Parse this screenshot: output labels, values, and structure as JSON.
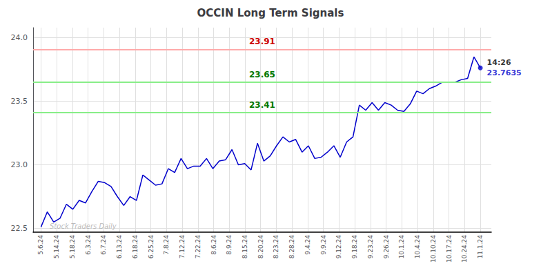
{
  "chart_data": {
    "type": "line",
    "title": "OCCIN Long Term Signals",
    "x": [
      0,
      0.4058,
      0.8116,
      1.2174,
      1.6232,
      2.029,
      2.4348,
      2.8406,
      3.2464,
      3.6522,
      4.058,
      4.4638,
      4.8696,
      5.2754,
      5.6812,
      6.087,
      6.4928,
      6.8986,
      7.3043,
      7.7101,
      8.1159,
      8.5217,
      8.9275,
      9.3333,
      9.7391,
      10.1449,
      10.5507,
      10.9565,
      11.3623,
      11.7681,
      12.1739,
      12.5797,
      12.9855,
      13.3913,
      13.7971,
      14.2029,
      14.6087,
      15.0145,
      15.4203,
      15.8261,
      16.2319,
      16.6377,
      17.0435,
      17.4493,
      17.8551,
      18.2609,
      18.6667,
      19.0725,
      19.4783,
      19.8841,
      20.2899,
      20.6957,
      21.1014,
      21.5072,
      21.913,
      22.3188,
      22.7246,
      23.1304,
      23.5362,
      23.942,
      24.3478,
      24.7536,
      25.1594,
      25.5652,
      25.971,
      26.3768,
      26.7826,
      27.1884,
      27.5942,
      28
    ],
    "values": [
      22.51,
      22.63,
      22.55,
      22.58,
      22.69,
      22.65,
      22.72,
      22.7,
      22.79,
      22.87,
      22.86,
      22.83,
      22.75,
      22.68,
      22.75,
      22.72,
      22.92,
      22.88,
      22.84,
      22.85,
      22.97,
      22.94,
      23.05,
      22.97,
      22.99,
      22.99,
      23.05,
      22.97,
      23.03,
      23.04,
      23.12,
      23.0,
      23.01,
      22.96,
      23.17,
      23.03,
      23.07,
      23.15,
      23.22,
      23.18,
      23.2,
      23.1,
      23.15,
      23.05,
      23.06,
      23.1,
      23.15,
      23.06,
      23.18,
      23.22,
      23.47,
      23.43,
      23.49,
      23.43,
      23.49,
      23.47,
      23.43,
      23.42,
      23.48,
      23.58,
      23.56,
      23.6,
      23.62,
      23.65,
      23.65,
      23.65,
      23.67,
      23.68,
      23.85,
      23.7635
    ],
    "color": "#0000cc",
    "xlim": [
      -0.5,
      28.7
    ],
    "xticks": [
      {
        "value": 0,
        "label": "5.6.24"
      },
      {
        "value": 1,
        "label": "5.14.24"
      },
      {
        "value": 2,
        "label": "5.18.24"
      },
      {
        "value": 3,
        "label": "6.3.24"
      },
      {
        "value": 4,
        "label": "6.7.24"
      },
      {
        "value": 5,
        "label": "6.13.24"
      },
      {
        "value": 6,
        "label": "6.18.24"
      },
      {
        "value": 7,
        "label": "6.25.24"
      },
      {
        "value": 8,
        "label": "7.8.24"
      },
      {
        "value": 9,
        "label": "7.12.24"
      },
      {
        "value": 10,
        "label": "7.22.24"
      },
      {
        "value": 11,
        "label": "8.6.24"
      },
      {
        "value": 12,
        "label": "8.9.24"
      },
      {
        "value": 13,
        "label": "8.15.24"
      },
      {
        "value": 14,
        "label": "8.20.24"
      },
      {
        "value": 15,
        "label": "8.23.24"
      },
      {
        "value": 16,
        "label": "8.28.24"
      },
      {
        "value": 17,
        "label": "9.4.24"
      },
      {
        "value": 18,
        "label": "9.9.24"
      },
      {
        "value": 19,
        "label": "9.12.24"
      },
      {
        "value": 20,
        "label": "9.18.24"
      },
      {
        "value": 21,
        "label": "9.23.24"
      },
      {
        "value": 22,
        "label": "9.26.24"
      },
      {
        "value": 23,
        "label": "10.1.24"
      },
      {
        "value": 24,
        "label": "10.4.24"
      },
      {
        "value": 25,
        "label": "10.10.24"
      },
      {
        "value": 26,
        "label": "10.17.24"
      },
      {
        "value": 27,
        "label": "10.24.24"
      },
      {
        "value": 28,
        "label": "11.1.24"
      }
    ],
    "ylim": [
      22.47,
      24.08
    ],
    "yticks": [
      22.5,
      {
        "value": 23.0,
        "label": "23.0"
      },
      23.5,
      {
        "value": 24.0,
        "label": "24.0"
      }
    ],
    "grid": true,
    "reference_lines": [
      {
        "value": 23.91,
        "color": "#ffaaaa",
        "label": "23.91",
        "label_color": "#cc0000"
      },
      {
        "value": 23.65,
        "color": "#88ee88",
        "label": "23.65",
        "label_color": "#007700"
      },
      {
        "value": 23.41,
        "color": "#88ee88",
        "label": "23.41",
        "label_color": "#007700"
      }
    ],
    "annotations": [
      {
        "text": "14:26",
        "color": "#000000"
      },
      {
        "text": "23.7635",
        "color": "#0000cc"
      },
      {
        "text": "Stock Traders Daily",
        "color": "#aaaaaa"
      }
    ]
  }
}
